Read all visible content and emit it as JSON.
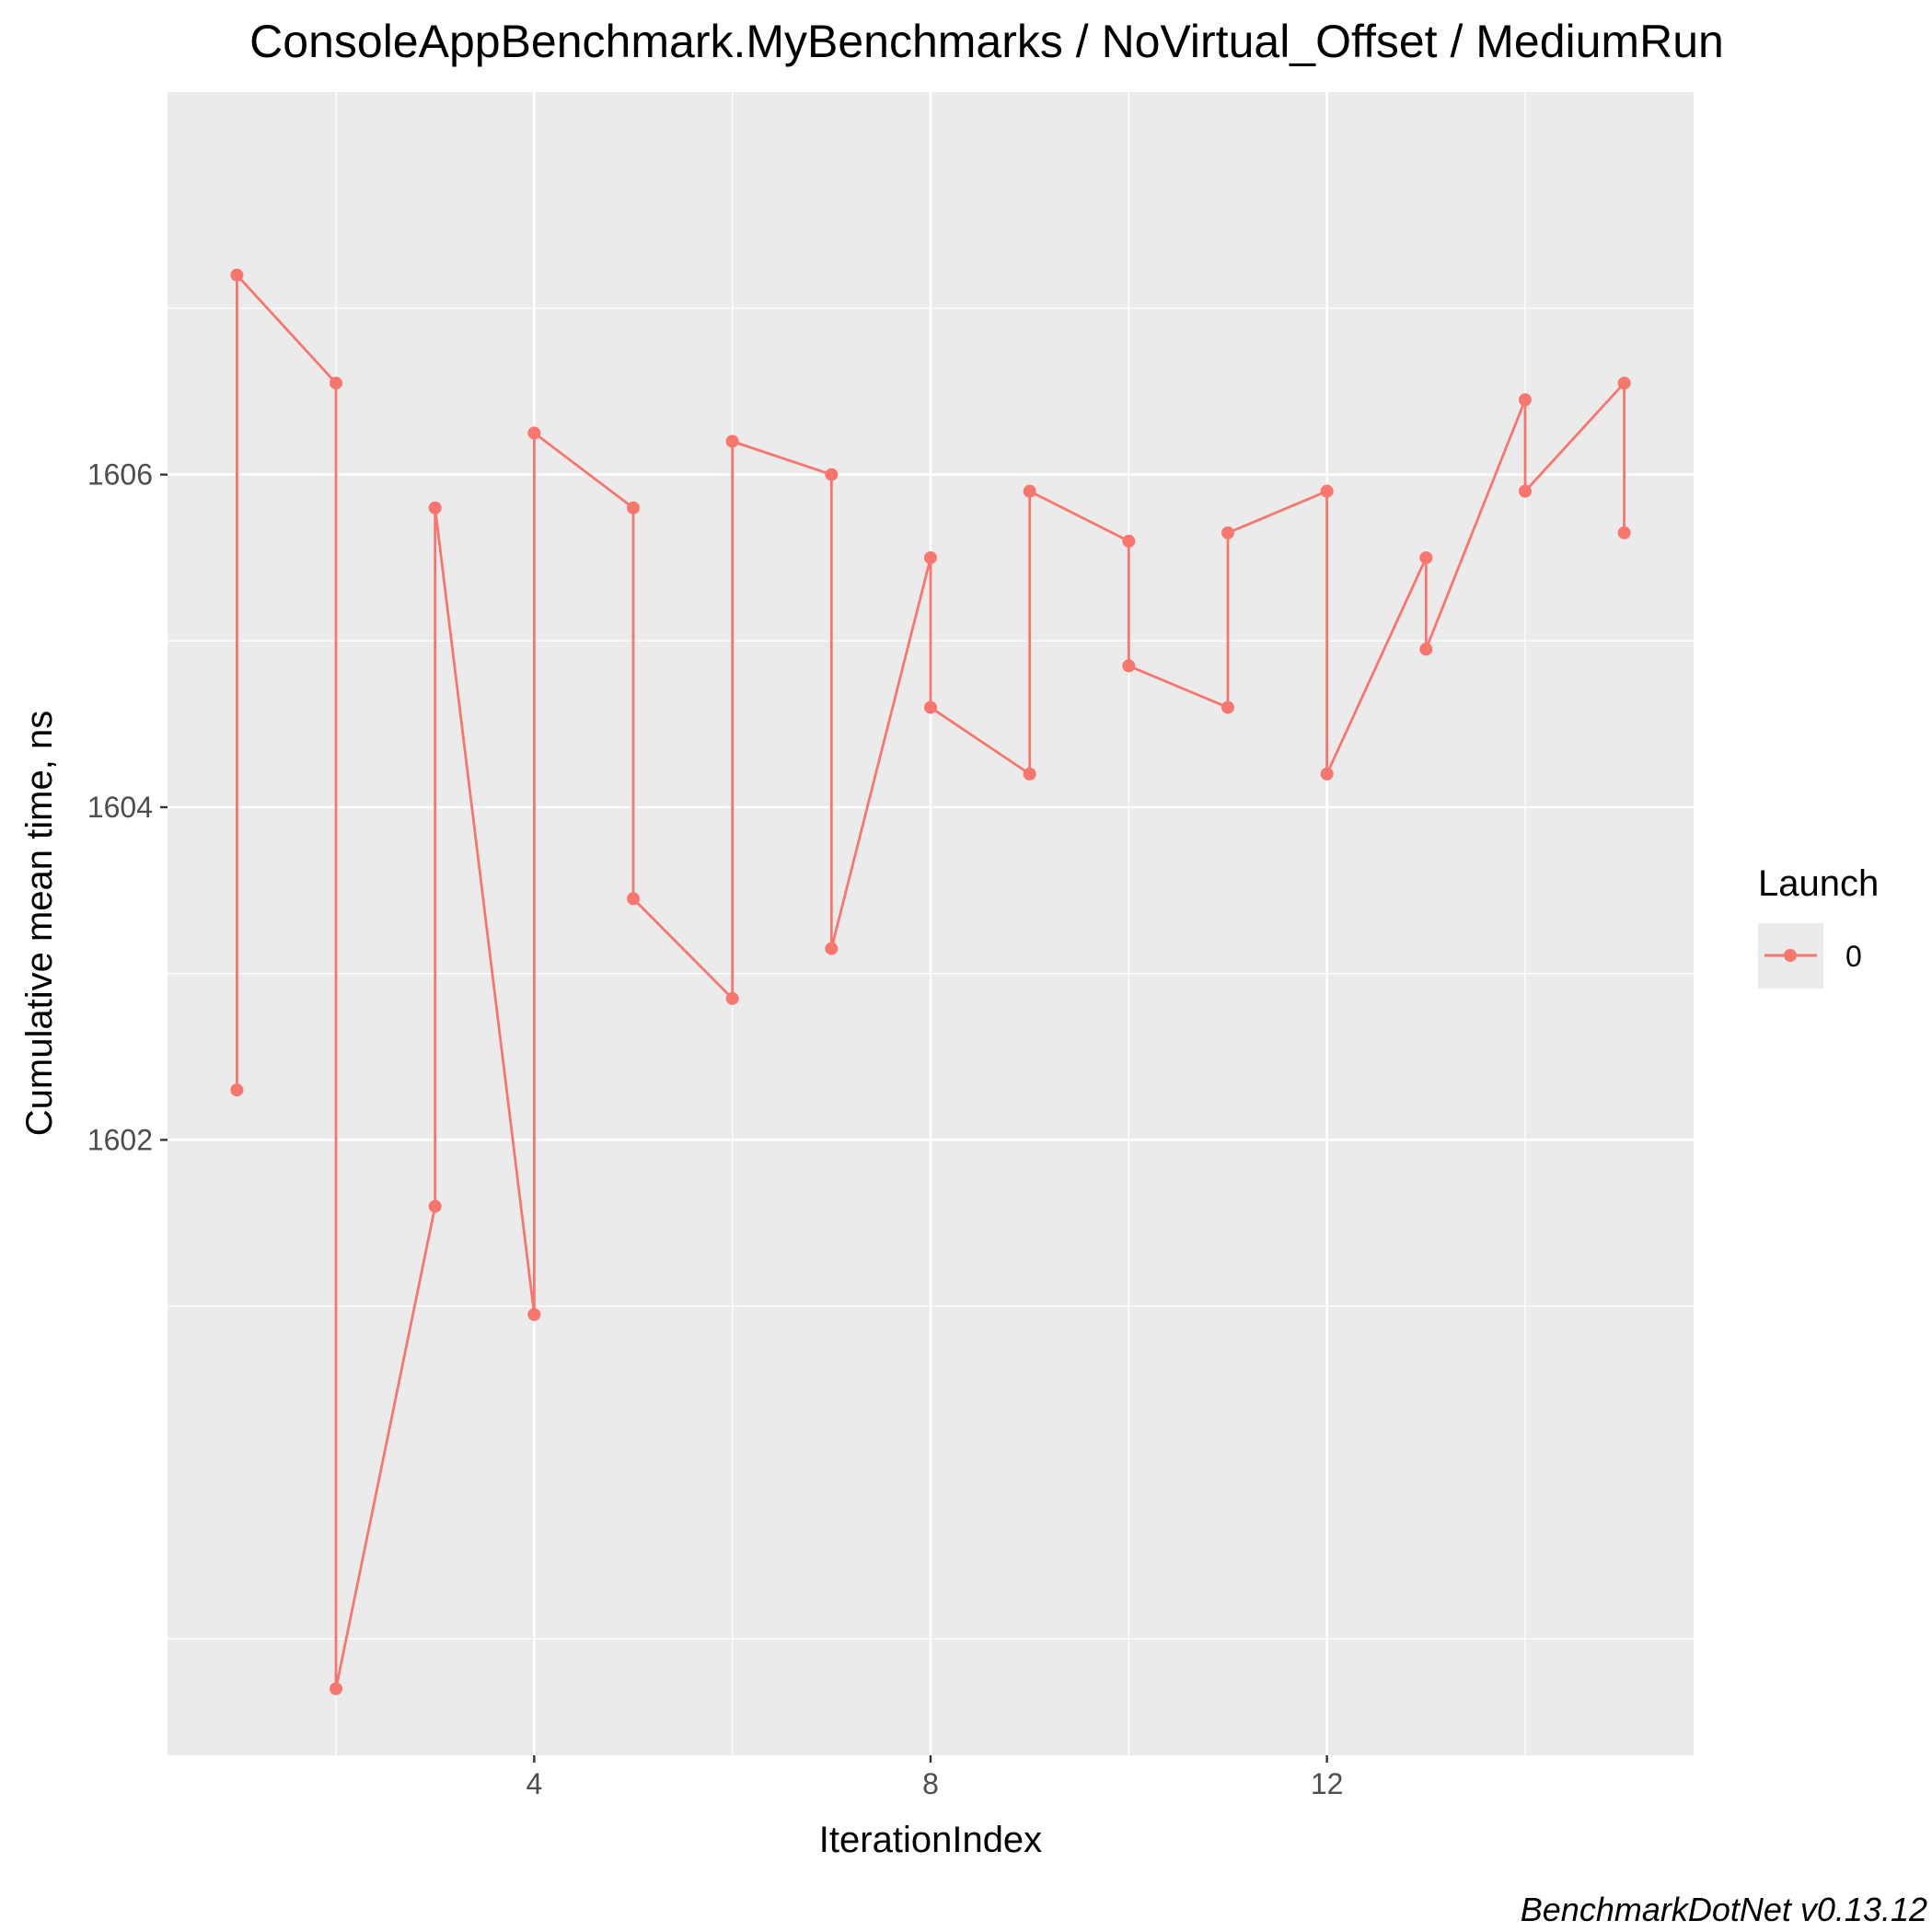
{
  "chart_data": {
    "type": "line",
    "title": "ConsoleAppBenchmark.MyBenchmarks / NoVirtual_Offset / MediumRun",
    "xlabel": "IterationIndex",
    "ylabel": "Cumulative mean time, ns",
    "caption": "BenchmarkDotNet v0.13.12",
    "x_ticks": [
      4,
      8,
      12
    ],
    "y_ticks": [
      1602,
      1604,
      1606
    ],
    "xlim": [
      0.3,
      15.7
    ],
    "ylim": [
      1598.3,
      1608.3
    ],
    "grid": true,
    "legend": {
      "title": "Launch",
      "position": "right",
      "entries": [
        "0"
      ]
    },
    "colors": {
      "series": "#F8766D",
      "panel": "#EBEBEB",
      "grid": "#FFFFFF"
    },
    "series": [
      {
        "name": "0",
        "x": [
          1,
          1,
          2,
          2,
          3,
          3,
          4,
          4,
          5,
          5,
          6,
          6,
          7,
          7,
          8,
          8,
          9,
          9,
          10,
          10,
          11,
          11,
          12,
          12,
          13,
          13,
          14,
          14,
          15,
          15
        ],
        "y": [
          1602.3,
          1607.2,
          1606.55,
          1598.7,
          1601.6,
          1605.8,
          1600.95,
          1606.25,
          1605.8,
          1603.45,
          1602.85,
          1606.2,
          1606.0,
          1603.15,
          1605.5,
          1604.6,
          1604.2,
          1605.9,
          1605.6,
          1604.85,
          1604.6,
          1605.65,
          1605.9,
          1604.2,
          1605.5,
          1604.95,
          1606.45,
          1605.9,
          1606.55,
          1605.65
        ]
      }
    ]
  }
}
